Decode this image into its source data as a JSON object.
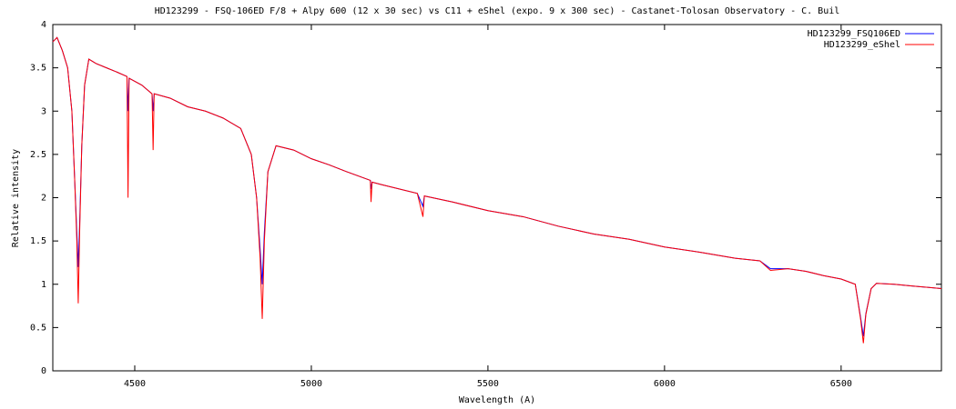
{
  "chart_data": {
    "type": "line",
    "title": "HD123299 - FSQ-106ED F/8 + Alpy 600 (12 x 30 sec)  vs C11 + eShel (expo. 9 x 300 sec) - Castanet-Tolosan Observatory - C. Buil",
    "xlabel": "Wavelength (A)",
    "ylabel": "Relative intensity",
    "xlim": [
      4268,
      6784
    ],
    "ylim": [
      0,
      4
    ],
    "xticks": [
      4500,
      5000,
      5500,
      6000,
      6500
    ],
    "yticks": [
      0,
      0.5,
      1,
      1.5,
      2,
      2.5,
      3,
      3.5,
      4
    ],
    "legend": "top-right",
    "x": [
      4268,
      4280,
      4295,
      4310,
      4322,
      4330,
      4336,
      4340,
      4344,
      4350,
      4358,
      4370,
      4390,
      4420,
      4450,
      4478,
      4481,
      4484,
      4520,
      4549,
      4552,
      4555,
      4600,
      4650,
      4700,
      4750,
      4800,
      4830,
      4845,
      4855,
      4861,
      4867,
      4877,
      4900,
      4950,
      5000,
      5050,
      5100,
      5167,
      5169,
      5172,
      5200,
      5300,
      5316,
      5320,
      5400,
      5500,
      5600,
      5700,
      5800,
      5900,
      6000,
      6100,
      6200,
      6270,
      6300,
      6350,
      6400,
      6450,
      6500,
      6540,
      6555,
      6563,
      6570,
      6585,
      6600,
      6650,
      6700,
      6784
    ],
    "series": [
      {
        "name": "HD123299_FSQ106ED",
        "color": "#0000ff",
        "values": [
          3.8,
          3.85,
          3.7,
          3.5,
          3.0,
          2.2,
          1.6,
          1.2,
          1.7,
          2.6,
          3.3,
          3.6,
          3.55,
          3.5,
          3.45,
          3.4,
          3.0,
          3.38,
          3.3,
          3.2,
          3.0,
          3.2,
          3.15,
          3.05,
          3.0,
          2.92,
          2.8,
          2.5,
          2.0,
          1.4,
          1.0,
          1.6,
          2.3,
          2.6,
          2.55,
          2.45,
          2.38,
          2.3,
          2.2,
          2.1,
          2.18,
          2.15,
          2.05,
          1.9,
          2.02,
          1.95,
          1.85,
          1.78,
          1.67,
          1.58,
          1.52,
          1.43,
          1.37,
          1.3,
          1.27,
          1.18,
          1.18,
          1.15,
          1.1,
          1.06,
          1.0,
          0.62,
          0.4,
          0.66,
          0.95,
          1.01,
          1.0,
          0.98,
          0.95
        ]
      },
      {
        "name": "HD123299_eShel",
        "color": "#ff0000",
        "values": [
          3.8,
          3.85,
          3.7,
          3.5,
          3.0,
          2.2,
          1.5,
          0.78,
          1.6,
          2.6,
          3.3,
          3.6,
          3.55,
          3.5,
          3.45,
          3.4,
          2.0,
          3.38,
          3.3,
          3.2,
          2.55,
          3.2,
          3.15,
          3.05,
          3.0,
          2.92,
          2.8,
          2.5,
          2.0,
          1.3,
          0.6,
          1.5,
          2.3,
          2.6,
          2.55,
          2.45,
          2.38,
          2.3,
          2.2,
          1.95,
          2.18,
          2.15,
          2.05,
          1.78,
          2.02,
          1.95,
          1.85,
          1.78,
          1.67,
          1.58,
          1.52,
          1.43,
          1.37,
          1.3,
          1.27,
          1.16,
          1.18,
          1.15,
          1.1,
          1.06,
          1.0,
          0.6,
          0.32,
          0.65,
          0.95,
          1.01,
          1.0,
          0.98,
          0.95
        ]
      }
    ]
  }
}
